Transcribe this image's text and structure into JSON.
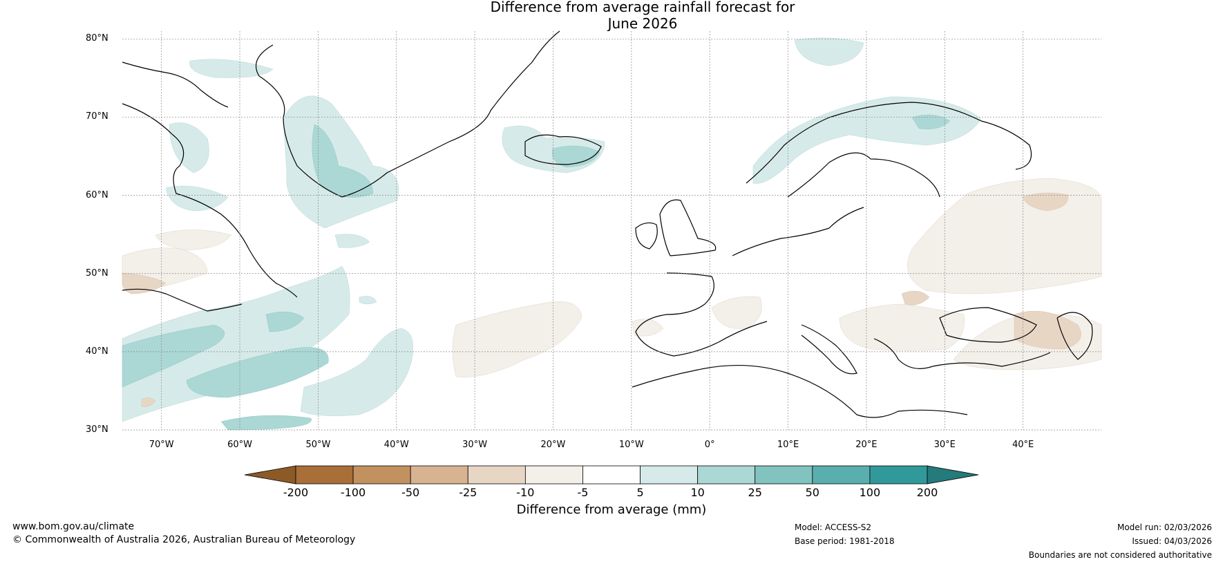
{
  "title": {
    "line1": "Difference from average rainfall forecast for",
    "line2": "June 2026"
  },
  "map": {
    "extent": {
      "lon": [
        -75,
        50
      ],
      "lat": [
        30,
        81
      ]
    },
    "lat_ticks": [
      "80°N",
      "70°N",
      "60°N",
      "50°N",
      "40°N",
      "30°N"
    ],
    "lon_ticks": [
      "70°W",
      "60°W",
      "50°W",
      "40°W",
      "30°W",
      "20°W",
      "10°W",
      "0°",
      "10°E",
      "20°E",
      "30°E",
      "40°E"
    ],
    "gridlines": "dotted"
  },
  "colorbar": {
    "title": "Difference from average (mm)",
    "ticks": [
      "-200",
      "-100",
      "-50",
      "-25",
      "-10",
      "-5",
      "5",
      "10",
      "25",
      "50",
      "100",
      "200"
    ],
    "colors": [
      "#8c5a27",
      "#a86f39",
      "#c29160",
      "#d8b391",
      "#e8d6c5",
      "#f3efe9",
      "#ffffff",
      "#d6ebe9",
      "#abd7d4",
      "#82c3bf",
      "#5aaead",
      "#31999a",
      "#257a7b"
    ]
  },
  "footer": {
    "url": "www.bom.gov.au/climate",
    "copyright": "© Commonwealth of Australia 2026, Australian Bureau of Meteorology",
    "model": "Model: ACCESS-S2",
    "base_period": "Base period: 1981-2018",
    "model_run": "Model run: 02/03/2026",
    "issued": "Issued: 04/03/2026",
    "disclaimer": "Boundaries are not considered authoritative"
  }
}
